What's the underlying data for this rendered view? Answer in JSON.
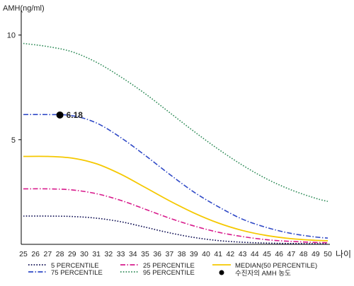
{
  "chart_data": {
    "type": "line",
    "ylabel": "AMH(ng/ml)",
    "xlabel": "나이",
    "xlim": [
      25,
      50
    ],
    "ylim": [
      0,
      11
    ],
    "x_ticks": [
      25,
      26,
      27,
      28,
      29,
      30,
      31,
      32,
      33,
      34,
      35,
      36,
      37,
      38,
      39,
      40,
      41,
      42,
      43,
      44,
      45,
      46,
      47,
      48,
      49,
      50
    ],
    "y_ticks": [
      5,
      10
    ],
    "grid": false,
    "legend_position": "bottom",
    "series": [
      {
        "name": "5 PERCENTILE",
        "color": "#0a0a50",
        "style": "dotted",
        "x": [
          25,
          27,
          29,
          31,
          33,
          35,
          37,
          39,
          41,
          43,
          45,
          47,
          49,
          50
        ],
        "values": [
          1.35,
          1.35,
          1.33,
          1.25,
          1.08,
          0.82,
          0.55,
          0.33,
          0.18,
          0.1,
          0.06,
          0.04,
          0.03,
          0.03
        ]
      },
      {
        "name": "25 PERCENTILE",
        "color": "#d81b8c",
        "style": "dashdot",
        "x": [
          25,
          27,
          29,
          31,
          33,
          35,
          37,
          39,
          41,
          43,
          45,
          47,
          49,
          50
        ],
        "values": [
          2.65,
          2.65,
          2.6,
          2.42,
          2.1,
          1.68,
          1.25,
          0.88,
          0.58,
          0.37,
          0.22,
          0.14,
          0.09,
          0.08
        ]
      },
      {
        "name": "MEDIAN(50 PERCENTILE)",
        "color": "#f5c800",
        "style": "solid",
        "x": [
          25,
          27,
          29,
          31,
          33,
          35,
          37,
          39,
          41,
          43,
          45,
          47,
          49,
          50
        ],
        "values": [
          4.2,
          4.2,
          4.12,
          3.85,
          3.35,
          2.72,
          2.08,
          1.5,
          1.02,
          0.66,
          0.42,
          0.27,
          0.19,
          0.17
        ]
      },
      {
        "name": "75 PERCENTILE",
        "color": "#2f49c6",
        "style": "dashdot",
        "x": [
          25,
          27,
          29,
          31,
          33,
          35,
          37,
          39,
          41,
          43,
          45,
          47,
          49,
          50
        ],
        "values": [
          6.2,
          6.2,
          6.15,
          5.8,
          5.1,
          4.25,
          3.35,
          2.5,
          1.8,
          1.2,
          0.8,
          0.52,
          0.35,
          0.3
        ]
      },
      {
        "name": "95 PERCENTILE",
        "color": "#2e8b57",
        "style": "dotted",
        "x": [
          25,
          27,
          29,
          31,
          33,
          35,
          37,
          39,
          41,
          43,
          45,
          47,
          49,
          50
        ],
        "values": [
          9.6,
          9.45,
          9.2,
          8.7,
          8.0,
          7.2,
          6.3,
          5.4,
          4.55,
          3.78,
          3.12,
          2.6,
          2.2,
          2.05
        ]
      }
    ],
    "marker": {
      "name": "수진자의 AMH 농도",
      "x": 28,
      "y": 6.18,
      "label": "6.18",
      "color": "#000000"
    }
  }
}
